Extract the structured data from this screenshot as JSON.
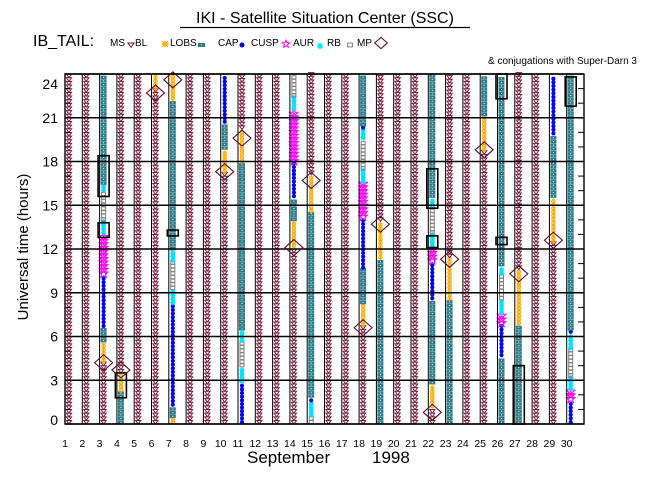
{
  "header": {
    "title": "IKI - Satellite Situation Center (SSC)",
    "satellite_label": "IB_TAIL:",
    "conjugations_note": "& conjugations with Super-Darn 3"
  },
  "legend": [
    {
      "label": "MS",
      "marker": "triangle-down-icon",
      "color": "#7a1a3a"
    },
    {
      "label": "BL",
      "marker": "sun-icon",
      "color": "#ffaa00"
    },
    {
      "label": "LOBS",
      "marker": "square-dot-icon",
      "color": "#2b7b88"
    },
    {
      "label": "CAP",
      "marker": "dot-icon",
      "color": "#0000ff"
    },
    {
      "label": "CUSP",
      "marker": "star-icon",
      "color": "#ff00ff"
    },
    {
      "label": "AUR",
      "marker": "asterisk-icon",
      "color": "#00e0ff"
    },
    {
      "label": "RB",
      "marker": "open-square-icon",
      "color": "#808080"
    },
    {
      "label": "MP",
      "marker": "diamond-icon",
      "color": "#5c0f2f"
    }
  ],
  "conjugation_box_color": "#000000",
  "chart_data": {
    "type": "scatter",
    "title": "IKI - Satellite Situation Center (SSC)",
    "subtitle": "IB_TAIL",
    "xlabel_month": "September",
    "xlabel_year": "1998",
    "ylabel": "Universal time (hours)",
    "xlim": [
      1,
      31
    ],
    "ylim": [
      0,
      24
    ],
    "xticks": [
      "1",
      "2",
      "3",
      "4",
      "5",
      "6",
      "7",
      "8",
      "9",
      "10",
      "11",
      "12",
      "13",
      "14",
      "15",
      "16",
      "17",
      "18",
      "19",
      "20",
      "21",
      "22",
      "23",
      "24",
      "25",
      "26",
      "27",
      "28",
      "29",
      "30"
    ],
    "yticks": [
      "0",
      "3",
      "6",
      "9",
      "12",
      "15",
      "18",
      "21",
      "24"
    ],
    "grid": true,
    "legend_position": "top",
    "annotation": "& conjugations with Super-Darn 3",
    "days": [
      {
        "day": 1,
        "segments": [
          {
            "region": "MS",
            "from": 0,
            "to": 24
          }
        ],
        "mp_crossings": [],
        "conjugations": []
      },
      {
        "day": 2,
        "segments": [
          {
            "region": "MS",
            "from": 0,
            "to": 24
          }
        ],
        "mp_crossings": [],
        "conjugations": []
      },
      {
        "day": 3,
        "segments": [
          {
            "region": "MS",
            "from": 0,
            "to": 4.2
          },
          {
            "region": "BL",
            "from": 4.2,
            "to": 5.6
          },
          {
            "region": "LOBS",
            "from": 5.6,
            "to": 6.6
          },
          {
            "region": "CAP",
            "from": 6.6,
            "to": 10.2
          },
          {
            "region": "CUSP",
            "from": 10.2,
            "to": 13.0
          },
          {
            "region": "AUR",
            "from": 13.0,
            "to": 13.9
          },
          {
            "region": "RB",
            "from": 13.9,
            "to": 15.9
          },
          {
            "region": "AUR",
            "from": 15.9,
            "to": 16.4
          },
          {
            "region": "LOBS",
            "from": 16.4,
            "to": 23.9
          }
        ],
        "mp_crossings": [
          4.2
        ],
        "conjugations": [
          [
            15.6,
            18.4
          ],
          [
            12.8,
            13.8
          ]
        ]
      },
      {
        "day": 4,
        "segments": [
          {
            "region": "LOBS",
            "from": 0,
            "to": 2.2
          },
          {
            "region": "BL",
            "from": 2.2,
            "to": 3.5
          },
          {
            "region": "MS",
            "from": 3.5,
            "to": 24
          }
        ],
        "mp_crossings": [
          3.7
        ],
        "conjugations": [
          [
            1.8,
            3.5
          ]
        ]
      },
      {
        "day": 5,
        "segments": [
          {
            "region": "MS",
            "from": 0,
            "to": 24
          }
        ],
        "mp_crossings": [],
        "conjugations": []
      },
      {
        "day": 6,
        "segments": [
          {
            "region": "MS",
            "from": 0,
            "to": 22.9
          },
          {
            "region": "BL",
            "from": 22.9,
            "to": 23.9
          }
        ],
        "mp_crossings": [
          22.7
        ],
        "conjugations": []
      },
      {
        "day": 7,
        "segments": [
          {
            "region": "BL",
            "from": 0,
            "to": 0.4
          },
          {
            "region": "LOBS",
            "from": 0.4,
            "to": 1.2
          },
          {
            "region": "CAP",
            "from": 1.2,
            "to": 8.2
          },
          {
            "region": "AUR",
            "from": 8.2,
            "to": 9.2
          },
          {
            "region": "RB",
            "from": 9.2,
            "to": 11.1
          },
          {
            "region": "AUR",
            "from": 11.1,
            "to": 11.9
          },
          {
            "region": "LOBS",
            "from": 11.9,
            "to": 22.2
          },
          {
            "region": "BL",
            "from": 22.2,
            "to": 23.9
          }
        ],
        "mp_crossings": [
          23.6
        ],
        "conjugations": [
          [
            12.9,
            13.3
          ]
        ]
      },
      {
        "day": 8,
        "segments": [
          {
            "region": "MS",
            "from": 0,
            "to": 24
          }
        ],
        "mp_crossings": [],
        "conjugations": []
      },
      {
        "day": 9,
        "segments": [
          {
            "region": "MS",
            "from": 0,
            "to": 24
          }
        ],
        "mp_crossings": [],
        "conjugations": []
      },
      {
        "day": 10,
        "segments": [
          {
            "region": "MS",
            "from": 0,
            "to": 17.2
          },
          {
            "region": "BL",
            "from": 17.2,
            "to": 18.8
          },
          {
            "region": "LOBS",
            "from": 18.8,
            "to": 20.6
          },
          {
            "region": "CAP",
            "from": 20.6,
            "to": 23.9
          }
        ],
        "mp_crossings": [
          17.3
        ],
        "conjugations": []
      },
      {
        "day": 11,
        "segments": [
          {
            "region": "CAP",
            "from": 0,
            "to": 2.8
          },
          {
            "region": "AUR",
            "from": 2.8,
            "to": 3.9
          },
          {
            "region": "RB",
            "from": 3.9,
            "to": 5.6
          },
          {
            "region": "AUR",
            "from": 5.6,
            "to": 6.4
          },
          {
            "region": "LOBS",
            "from": 6.4,
            "to": 17.9
          },
          {
            "region": "BL",
            "from": 17.9,
            "to": 20.2
          },
          {
            "region": "MS",
            "from": 20.2,
            "to": 24
          }
        ],
        "mp_crossings": [
          19.6
        ],
        "conjugations": []
      },
      {
        "day": 12,
        "segments": [
          {
            "region": "MS",
            "from": 0,
            "to": 24
          }
        ],
        "mp_crossings": [],
        "conjugations": []
      },
      {
        "day": 13,
        "segments": [
          {
            "region": "MS",
            "from": 0,
            "to": 24
          }
        ],
        "mp_crossings": [],
        "conjugations": []
      },
      {
        "day": 14,
        "segments": [
          {
            "region": "MS",
            "from": 0,
            "to": 12.1
          },
          {
            "region": "BL",
            "from": 12.1,
            "to": 13.9
          },
          {
            "region": "LOBS",
            "from": 13.9,
            "to": 15.5
          },
          {
            "region": "CAP",
            "from": 15.5,
            "to": 17.9
          },
          {
            "region": "CUSP",
            "from": 17.9,
            "to": 21.5
          },
          {
            "region": "AUR",
            "from": 21.5,
            "to": 22.4
          },
          {
            "region": "RB",
            "from": 22.4,
            "to": 23.9
          }
        ],
        "mp_crossings": [
          12.1
        ],
        "conjugations": []
      },
      {
        "day": 15,
        "segments": [
          {
            "region": "RB",
            "from": 0,
            "to": 0.5
          },
          {
            "region": "AUR",
            "from": 0.5,
            "to": 1.5
          },
          {
            "region": "CAP",
            "from": 1.5,
            "to": 1.8
          },
          {
            "region": "LOBS",
            "from": 1.8,
            "to": 14.5
          },
          {
            "region": "BL",
            "from": 14.5,
            "to": 17.1
          },
          {
            "region": "MS",
            "from": 17.1,
            "to": 24
          }
        ],
        "mp_crossings": [
          16.7
        ],
        "conjugations": []
      },
      {
        "day": 16,
        "segments": [
          {
            "region": "MS",
            "from": 0,
            "to": 24
          }
        ],
        "mp_crossings": [],
        "conjugations": []
      },
      {
        "day": 17,
        "segments": [
          {
            "region": "MS",
            "from": 0,
            "to": 24
          }
        ],
        "mp_crossings": [],
        "conjugations": []
      },
      {
        "day": 18,
        "segments": [
          {
            "region": "MS",
            "from": 0,
            "to": 6.7
          },
          {
            "region": "BL",
            "from": 6.7,
            "to": 8.2
          },
          {
            "region": "LOBS",
            "from": 8.2,
            "to": 10.6
          },
          {
            "region": "CAP",
            "from": 10.6,
            "to": 14.1
          },
          {
            "region": "CUSP",
            "from": 14.1,
            "to": 16.5
          },
          {
            "region": "AUR",
            "from": 16.5,
            "to": 17.4
          },
          {
            "region": "RB",
            "from": 17.4,
            "to": 19.5
          },
          {
            "region": "AUR",
            "from": 19.5,
            "to": 20.2
          },
          {
            "region": "CAP",
            "from": 20.2,
            "to": 20.4
          },
          {
            "region": "LOBS",
            "from": 20.4,
            "to": 23.9
          }
        ],
        "mp_crossings": [
          6.6
        ],
        "conjugations": []
      },
      {
        "day": 19,
        "segments": [
          {
            "region": "LOBS",
            "from": 0,
            "to": 11.3
          },
          {
            "region": "BL",
            "from": 11.3,
            "to": 13.9
          },
          {
            "region": "MS",
            "from": 13.9,
            "to": 24
          }
        ],
        "mp_crossings": [
          13.7
        ],
        "conjugations": []
      },
      {
        "day": 20,
        "segments": [
          {
            "region": "MS",
            "from": 0,
            "to": 24
          }
        ],
        "mp_crossings": [],
        "conjugations": []
      },
      {
        "day": 21,
        "segments": [
          {
            "region": "MS",
            "from": 0,
            "to": 24
          }
        ],
        "mp_crossings": [],
        "conjugations": []
      },
      {
        "day": 22,
        "segments": [
          {
            "region": "MS",
            "from": 0,
            "to": 1.1
          },
          {
            "region": "BL",
            "from": 1.1,
            "to": 2.7
          },
          {
            "region": "LOBS",
            "from": 2.7,
            "to": 8.5
          },
          {
            "region": "CAP",
            "from": 8.5,
            "to": 11.1
          },
          {
            "region": "CUSP",
            "from": 11.1,
            "to": 12.1
          },
          {
            "region": "AUR",
            "from": 12.1,
            "to": 13.0
          },
          {
            "region": "RB",
            "from": 13.0,
            "to": 14.9
          },
          {
            "region": "AUR",
            "from": 14.9,
            "to": 15.5
          },
          {
            "region": "LOBS",
            "from": 15.5,
            "to": 23.9
          }
        ],
        "mp_crossings": [
          0.8
        ],
        "conjugations": [
          [
            14.8,
            17.5
          ],
          [
            12.1,
            12.9
          ]
        ]
      },
      {
        "day": 23,
        "segments": [
          {
            "region": "LOBS",
            "from": 0,
            "to": 8.5
          },
          {
            "region": "BL",
            "from": 8.5,
            "to": 11.4
          },
          {
            "region": "MS",
            "from": 11.4,
            "to": 24
          }
        ],
        "mp_crossings": [
          11.3
        ],
        "conjugations": []
      },
      {
        "day": 24,
        "segments": [
          {
            "region": "MS",
            "from": 0,
            "to": 24
          }
        ],
        "mp_crossings": [],
        "conjugations": []
      },
      {
        "day": 25,
        "segments": [
          {
            "region": "MS",
            "from": 0,
            "to": 18.7
          },
          {
            "region": "BL",
            "from": 18.7,
            "to": 21.1
          },
          {
            "region": "LOBS",
            "from": 21.1,
            "to": 23.9
          }
        ],
        "mp_crossings": [
          18.8
        ],
        "conjugations": []
      },
      {
        "day": 26,
        "segments": [
          {
            "region": "LOBS",
            "from": 0,
            "to": 4.6
          },
          {
            "region": "CAP",
            "from": 4.6,
            "to": 6.8
          },
          {
            "region": "CUSP",
            "from": 6.8,
            "to": 7.5
          },
          {
            "region": "AUR",
            "from": 7.5,
            "to": 8.5
          },
          {
            "region": "RB",
            "from": 8.5,
            "to": 10.2
          },
          {
            "region": "AUR",
            "from": 10.2,
            "to": 10.8
          },
          {
            "region": "LOBS",
            "from": 10.8,
            "to": 23.9
          }
        ],
        "mp_crossings": [],
        "conjugations": [
          [
            22.3,
            24
          ],
          [
            12.3,
            12.8
          ]
        ]
      },
      {
        "day": 27,
        "segments": [
          {
            "region": "LOBS",
            "from": 0,
            "to": 6.8
          },
          {
            "region": "BL",
            "from": 6.8,
            "to": 10.6
          },
          {
            "region": "MS",
            "from": 10.6,
            "to": 24
          }
        ],
        "mp_crossings": [
          10.3
        ],
        "conjugations": [
          [
            0,
            4
          ]
        ]
      },
      {
        "day": 28,
        "segments": [
          {
            "region": "MS",
            "from": 0,
            "to": 24
          }
        ],
        "mp_crossings": [],
        "conjugations": []
      },
      {
        "day": 29,
        "segments": [
          {
            "region": "MS",
            "from": 0,
            "to": 12.4
          },
          {
            "region": "BL",
            "from": 12.4,
            "to": 15.5
          },
          {
            "region": "LOBS",
            "from": 15.5,
            "to": 19.8
          },
          {
            "region": "CAP",
            "from": 19.8,
            "to": 23.9
          }
        ],
        "mp_crossings": [
          12.6
        ],
        "conjugations": []
      },
      {
        "day": 30,
        "segments": [
          {
            "region": "CAP",
            "from": 0,
            "to": 1.6
          },
          {
            "region": "CUSP",
            "from": 1.6,
            "to": 2.3
          },
          {
            "region": "AUR",
            "from": 2.3,
            "to": 3.2
          },
          {
            "region": "RB",
            "from": 3.2,
            "to": 5.1
          },
          {
            "region": "AUR",
            "from": 5.1,
            "to": 6.2
          },
          {
            "region": "CAP",
            "from": 6.2,
            "to": 6.4
          },
          {
            "region": "LOBS",
            "from": 6.4,
            "to": 23.9
          }
        ],
        "mp_crossings": [],
        "conjugations": [
          [
            21.8,
            23.8
          ]
        ]
      }
    ]
  }
}
